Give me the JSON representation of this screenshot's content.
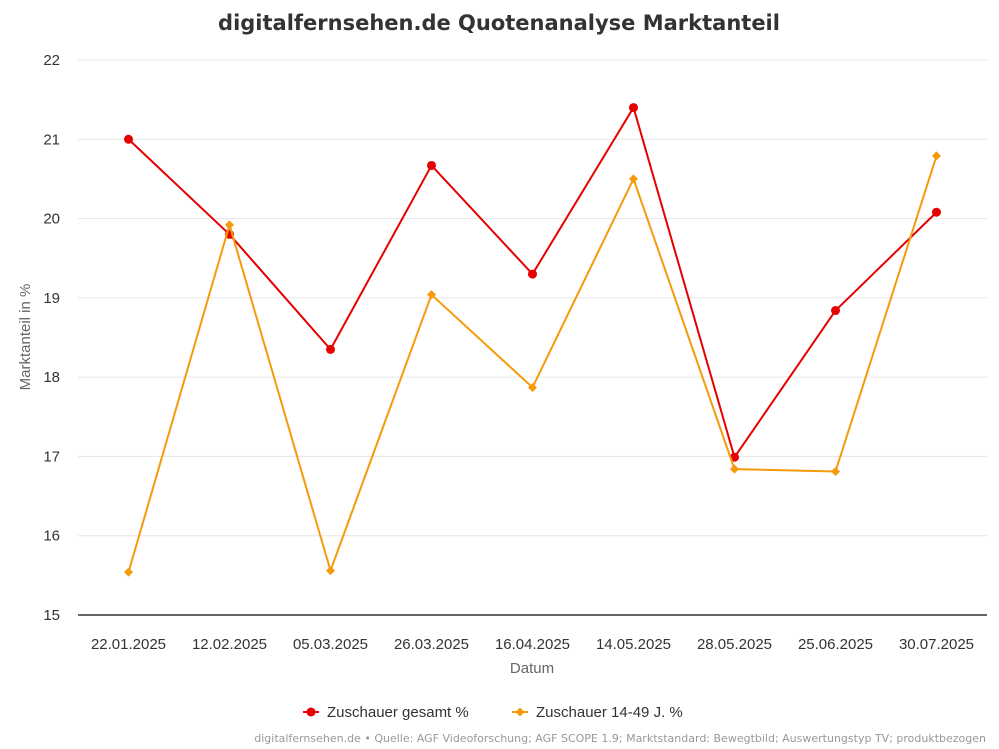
{
  "chart_data": {
    "type": "line",
    "title": "digitalfernsehen.de Quotenanalyse Marktanteil",
    "xlabel": "Datum",
    "ylabel": "Marktanteil in %",
    "ylim": [
      15,
      22
    ],
    "yticks": [
      "15",
      "16",
      "17",
      "18",
      "19",
      "20",
      "21",
      "22"
    ],
    "grid": true,
    "legend_position": "bottom-center",
    "categories": [
      "22.01.2025",
      "12.02.2025",
      "05.03.2025",
      "26.03.2025",
      "16.04.2025",
      "14.05.2025",
      "28.05.2025",
      "25.06.2025",
      "30.07.2025"
    ],
    "series": [
      {
        "name": "Zuschauer gesamt %",
        "color": "#e60000",
        "marker": "circle",
        "values": [
          21.0,
          19.8,
          18.35,
          20.67,
          19.3,
          21.4,
          16.99,
          18.84,
          20.08
        ]
      },
      {
        "name": "Zuschauer 14-49 J. %",
        "color": "#f59a0a",
        "marker": "diamond",
        "values": [
          15.54,
          19.92,
          15.56,
          19.04,
          17.87,
          20.5,
          16.84,
          16.81,
          20.79
        ]
      }
    ],
    "credits": "digitalfernsehen.de • Quelle: AGF Videoforschung; AGF SCOPE 1.9; Marktstandard: Bewegtbild; Auswertungstyp TV; produktbezogen"
  }
}
